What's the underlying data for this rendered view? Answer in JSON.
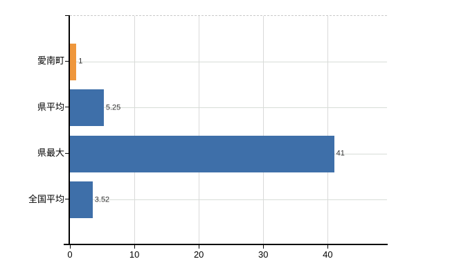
{
  "chart_data": {
    "type": "bar",
    "orientation": "horizontal",
    "title": "",
    "categories": [
      "愛南町",
      "県平均",
      "県最大",
      "全国平均"
    ],
    "values": [
      1,
      5.25,
      41,
      3.52
    ],
    "value_labels": [
      "1",
      "5.25",
      "41",
      "3.52"
    ],
    "bar_colors": [
      "#ef973c",
      "#3e6fa9",
      "#3e6fa9",
      "#3e6fa9"
    ],
    "xticks": [
      0,
      10,
      20,
      30,
      40
    ],
    "xlim": [
      0,
      49.2
    ],
    "grid": true,
    "legend": false,
    "background": "#ffffff",
    "axis_color": "#000000",
    "vertical_gridline_color": "#d9d9d9",
    "horizontal_gridline_color": "#d7ddd7",
    "plot_top_border": "dashed",
    "value_label_color": "#333333"
  }
}
